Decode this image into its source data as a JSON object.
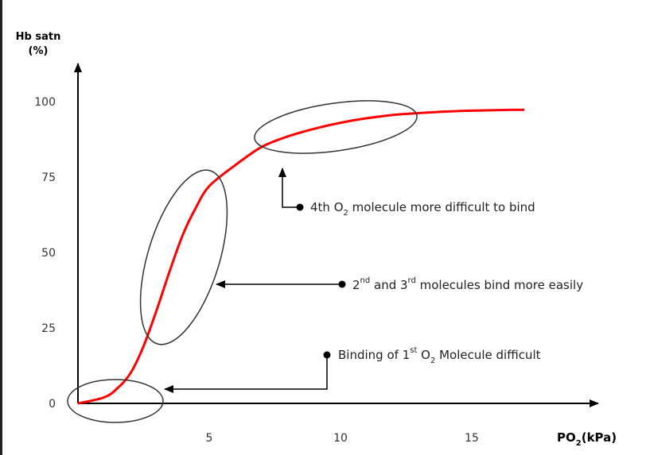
{
  "chart_data": {
    "type": "line",
    "title": "",
    "ylabel_line1": "Hb satn",
    "ylabel_line2": "(%)",
    "xlabel_main": "PO",
    "xlabel_sub": "2",
    "xlabel_unit": "(kPa)",
    "xticks": [
      5,
      10,
      15
    ],
    "yticks": [
      0,
      25,
      50,
      75,
      100
    ],
    "xlim": [
      0,
      20
    ],
    "ylim": [
      0,
      104
    ],
    "grid": false,
    "series": [
      {
        "color": "#ff0000",
        "x": [
          0,
          1,
          1.5,
          2,
          2.5,
          3,
          3.5,
          4,
          4.5,
          5,
          6,
          7,
          8,
          9,
          10,
          11,
          12,
          13,
          14,
          15,
          16,
          17
        ],
        "y": [
          0,
          2,
          5,
          10,
          19,
          31,
          44,
          56,
          65,
          72,
          79,
          85,
          88.5,
          91,
          93,
          94.5,
          95.6,
          96.2,
          96.7,
          97,
          97.2,
          97.3
        ]
      }
    ],
    "annotations": {
      "fourth": {
        "pre": "4th O",
        "sub": "2",
        "post": " molecule more difficult to bind"
      },
      "second_third": {
        "n1": "2",
        "sup1": "nd",
        "mid": " and 3",
        "sup2": "rd",
        "post": " molecules bind more easily"
      },
      "first": {
        "pre": "Binding of 1",
        "sup": "st",
        "mid": " O",
        "sub": "2",
        "post": " Molecule difficult"
      }
    }
  }
}
